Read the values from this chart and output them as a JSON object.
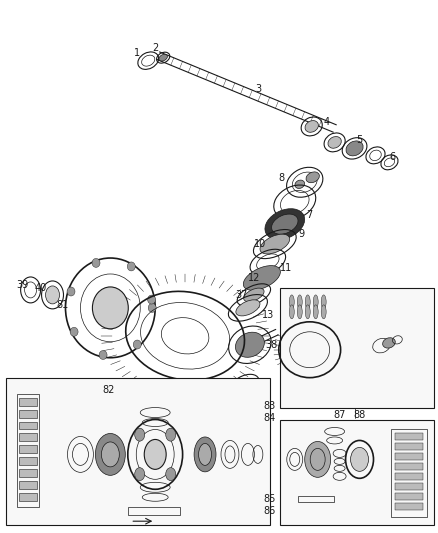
{
  "bg_color": "#ffffff",
  "fig_width": 4.38,
  "fig_height": 5.33,
  "dpi": 100,
  "col": "#1a1a1a",
  "lw_thin": 0.5,
  "lw_med": 0.8,
  "lw_thick": 1.2
}
